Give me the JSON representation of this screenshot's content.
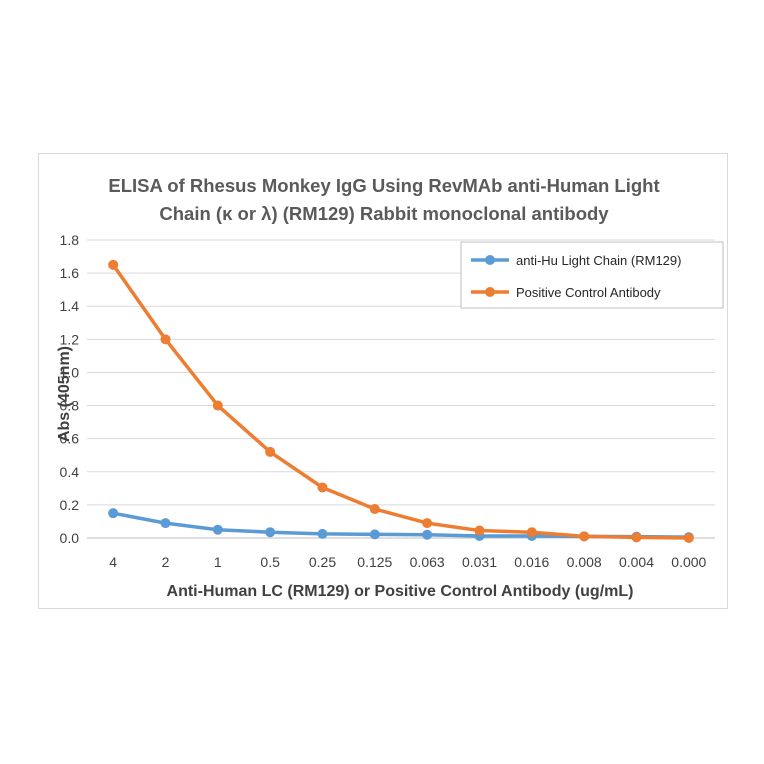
{
  "chart_data": {
    "type": "line",
    "title_lines": [
      "ELISA of Rhesus Monkey IgG Using RevMAb anti-Human Light",
      "Chain (κ or λ) (RM129) Rabbit monoclonal antibody"
    ],
    "xlabel": "Anti-Human LC (RM129) or Positive Control Antibody (ug/mL)",
    "ylabel": "Abs (405nm)",
    "categories": [
      "4",
      "2",
      "1",
      "0.5",
      "0.25",
      "0.125",
      "0.063",
      "0.031",
      "0.016",
      "0.008",
      "0.004",
      "0.000"
    ],
    "ylim": [
      0,
      1.8
    ],
    "yticks": [
      "0.0",
      "0.2",
      "0.4",
      "0.6",
      "0.8",
      "1.0",
      "1.2",
      "1.4",
      "1.6",
      "1.8"
    ],
    "ytick_values": [
      0,
      0.2,
      0.4,
      0.6,
      0.8,
      1.0,
      1.2,
      1.4,
      1.6,
      1.8
    ],
    "grid": true,
    "legend_position": "top-right",
    "series": [
      {
        "name": "anti-Hu Light Chain (RM129)",
        "color": "#5b9bd5",
        "values": [
          0.15,
          0.09,
          0.05,
          0.035,
          0.025,
          0.022,
          0.02,
          0.012,
          0.012,
          0.01,
          0.008,
          0.005
        ]
      },
      {
        "name": "Positive Control Antibody",
        "color": "#ed7d31",
        "values": [
          1.65,
          1.2,
          0.8,
          0.52,
          0.305,
          0.175,
          0.09,
          0.045,
          0.035,
          0.01,
          0.004,
          0.0
        ]
      }
    ]
  }
}
